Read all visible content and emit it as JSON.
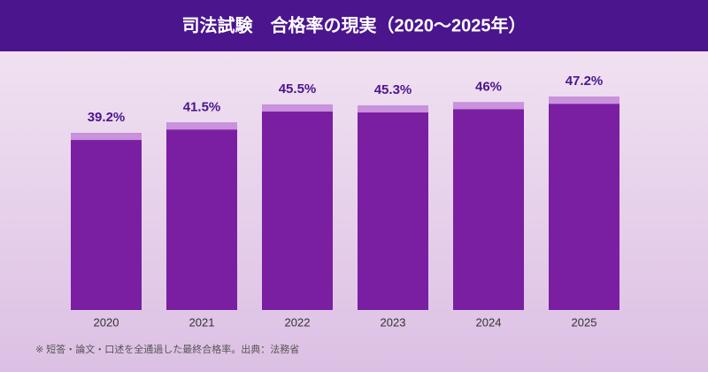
{
  "chart_data": {
    "type": "bar",
    "title": "司法試験　合格率の現実（2020〜2025年）",
    "categories": [
      "2020",
      "2021",
      "2022",
      "2023",
      "2024",
      "2025"
    ],
    "values": [
      39.2,
      41.5,
      45.5,
      45.3,
      46,
      47.2
    ],
    "value_labels": [
      "39.2%",
      "41.5%",
      "45.5%",
      "45.3%",
      "46%",
      "47.2%"
    ],
    "color": "#7b1fa2",
    "note": "※ 短答・論文・口述を全通過した最終合格率。出典：法務省"
  }
}
